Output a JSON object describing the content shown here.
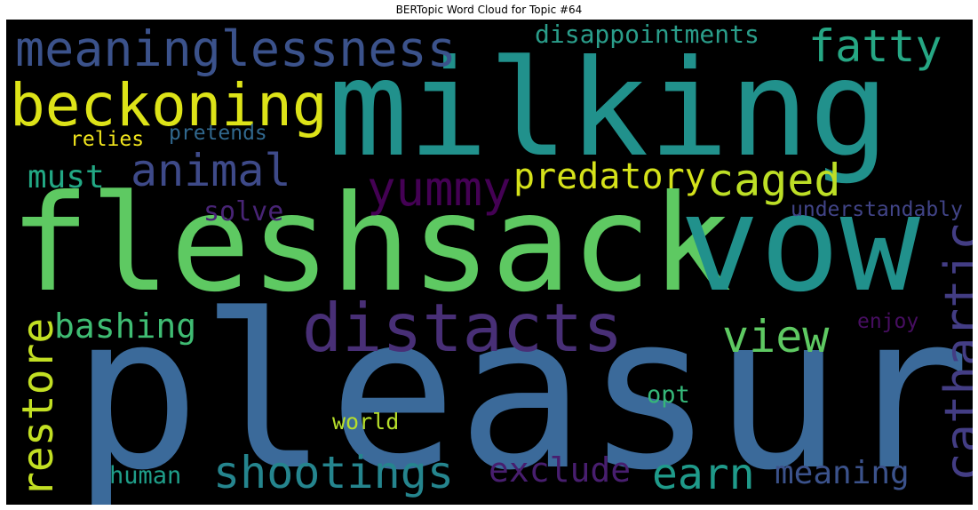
{
  "title": "BERTopic Word Cloud for Topic #64",
  "words": [
    {
      "text": "milking",
      "color": "#21918c"
    },
    {
      "text": "pleasure",
      "color": "#3b6a9a"
    },
    {
      "text": "fleshsack",
      "color": "#5ec962"
    },
    {
      "text": "vow",
      "color": "#21918c"
    },
    {
      "text": "beckoning",
      "color": "#dde318"
    },
    {
      "text": "meaninglessness",
      "color": "#3b528b"
    },
    {
      "text": "distacts",
      "color": "#482f76"
    },
    {
      "text": "animal",
      "color": "#3e4a89"
    },
    {
      "text": "fatty",
      "color": "#26a784"
    },
    {
      "text": "disappointments",
      "color": "#2a9d8a"
    },
    {
      "text": "cathartic",
      "color": "#433d84"
    },
    {
      "text": "restore",
      "color": "#c2df23"
    },
    {
      "text": "yummy",
      "color": "#440154"
    },
    {
      "text": "predatory",
      "color": "#d5e21a"
    },
    {
      "text": "caged",
      "color": "#bddf26"
    },
    {
      "text": "view",
      "color": "#5ec962"
    },
    {
      "text": "shootings",
      "color": "#25858e"
    },
    {
      "text": "earn",
      "color": "#1f9a8a"
    },
    {
      "text": "meaning",
      "color": "#3b528b"
    },
    {
      "text": "exclude",
      "color": "#481e6f"
    },
    {
      "text": "bashing",
      "color": "#3fbc73"
    },
    {
      "text": "must",
      "color": "#22a884"
    },
    {
      "text": "solve",
      "color": "#482475"
    },
    {
      "text": "understandably",
      "color": "#414487"
    },
    {
      "text": "relies",
      "color": "#f1e51d"
    },
    {
      "text": "pretends",
      "color": "#31688e"
    },
    {
      "text": "enjoy",
      "color": "#470e61"
    },
    {
      "text": "opt",
      "color": "#35b779"
    },
    {
      "text": "world",
      "color": "#b5de2b"
    },
    {
      "text": "human",
      "color": "#1f9e89"
    }
  ]
}
